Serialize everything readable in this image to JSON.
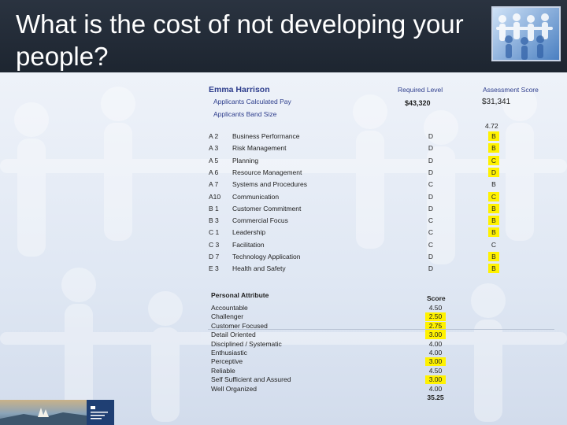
{
  "slide": {
    "title": "What is the cost of not developing your people?"
  },
  "report": {
    "employee_name": "Emma Harrison",
    "required_level_header": "Required Level",
    "assessment_score_header": "Assessment Score",
    "calc_pay_label": "Applicants Calculated Pay",
    "band_size_label": "Applicants Band Size",
    "required_pay": "$43,320",
    "assessed_pay": "$31,341",
    "band_size_value": "4.72",
    "competencies": [
      {
        "code": "A 2",
        "name": "Business Performance",
        "required": "D",
        "score": "B",
        "highlight": true
      },
      {
        "code": "A 3",
        "name": "Risk Management",
        "required": "D",
        "score": "B",
        "highlight": true
      },
      {
        "code": "A 5",
        "name": "Planning",
        "required": "D",
        "score": "C",
        "highlight": true
      },
      {
        "code": "A 6",
        "name": "Resource Management",
        "required": "D",
        "score": "D",
        "highlight": true
      },
      {
        "code": "A 7",
        "name": "Systems and Procedures",
        "required": "C",
        "score": "B",
        "highlight": false
      },
      {
        "code": "A10",
        "name": "Communication",
        "required": "D",
        "score": "C",
        "highlight": true
      },
      {
        "code": "B 1",
        "name": "Customer Commitment",
        "required": "D",
        "score": "B",
        "highlight": true
      },
      {
        "code": "B 3",
        "name": "Commercial Focus",
        "required": "C",
        "score": "B",
        "highlight": true
      },
      {
        "code": "C 1",
        "name": "Leadership",
        "required": "C",
        "score": "B",
        "highlight": true
      },
      {
        "code": "C 3",
        "name": "Facilitation",
        "required": "C",
        "score": "C",
        "highlight": false
      },
      {
        "code": "D 7",
        "name": "Technology Application",
        "required": "D",
        "score": "B",
        "highlight": true
      },
      {
        "code": "E 3",
        "name": "Health and Safety",
        "required": "D",
        "score": "B",
        "highlight": true
      }
    ],
    "personal_attribute_header": "Personal Attribute",
    "score_header": "Score",
    "personal_attributes": [
      {
        "name": "Accountable",
        "score": "4.50",
        "highlight": false
      },
      {
        "name": "Challenger",
        "score": "2.50",
        "highlight": true
      },
      {
        "name": "Customer Focused",
        "score": "2.75",
        "highlight": true
      },
      {
        "name": "Detail Oriented",
        "score": "3.00",
        "highlight": true
      },
      {
        "name": "Disciplined / Systematic",
        "score": "4.00",
        "highlight": false
      },
      {
        "name": "Enthusiastic",
        "score": "4.00",
        "highlight": false
      },
      {
        "name": "Perceptive",
        "score": "3.00",
        "highlight": true
      },
      {
        "name": "Reliable",
        "score": "4.50",
        "highlight": false
      },
      {
        "name": "Self Sufficient and Assured",
        "score": "3.00",
        "highlight": true
      },
      {
        "name": "Well Organized",
        "score": "4.00",
        "highlight": false
      }
    ],
    "total_score": "35.25",
    "highlight_color": "#fff200",
    "text_color": "#2d3d8c"
  },
  "logo": {
    "icon": "company-logo-icon"
  }
}
